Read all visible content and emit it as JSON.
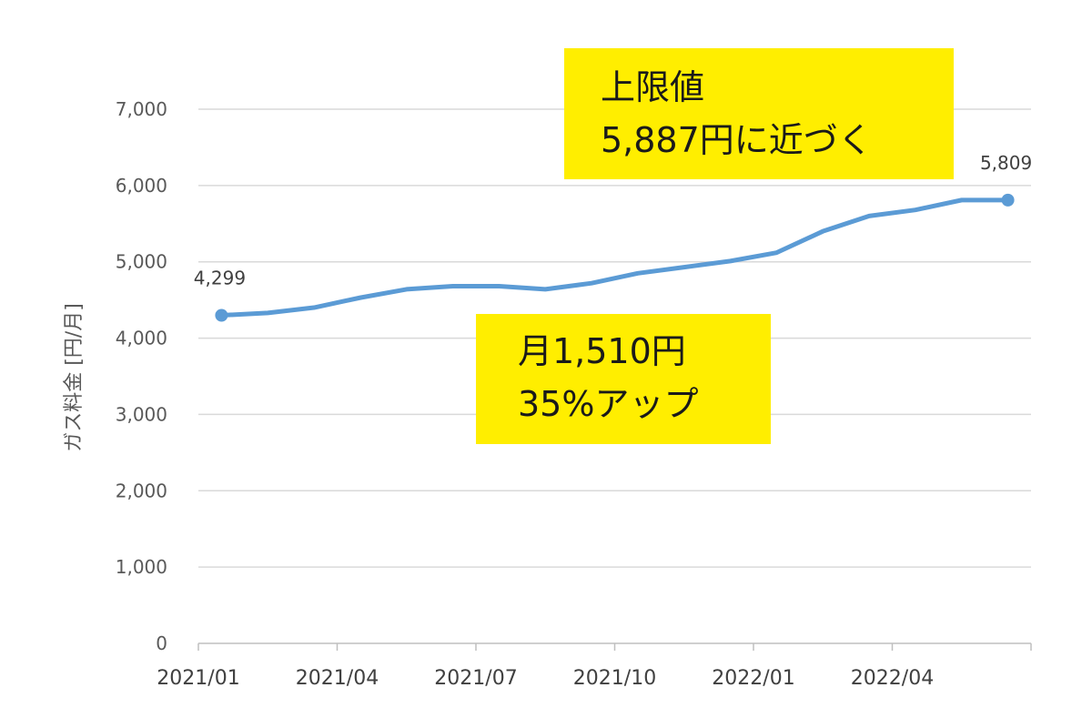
{
  "chart_data": {
    "type": "line",
    "ylabel": "ガス料金 [円/月]",
    "xlabel": "",
    "ylim": [
      0,
      7000
    ],
    "y_ticks": [
      0,
      1000,
      2000,
      3000,
      4000,
      5000,
      6000,
      7000
    ],
    "y_tick_labels": [
      "0",
      "1,000",
      "2,000",
      "3,000",
      "4,000",
      "5,000",
      "6,000",
      "7,000"
    ],
    "x_tick_labels": [
      "2021/01",
      "2021/04",
      "2021/07",
      "2021/10",
      "2022/01",
      "2022/04"
    ],
    "grid": true,
    "line_color": "#5b9bd5",
    "series": [
      {
        "x": [
          "2021/01",
          "2021/02",
          "2021/03",
          "2021/04",
          "2021/05",
          "2021/06",
          "2021/07",
          "2021/08",
          "2021/09",
          "2021/10",
          "2021/11",
          "2021/12",
          "2022/01",
          "2022/02",
          "2022/03",
          "2022/04",
          "2022/05",
          "2022/06"
        ],
        "values": [
          4299,
          4330,
          4400,
          4530,
          4640,
          4680,
          4680,
          4640,
          4720,
          4850,
          4930,
          5010,
          5120,
          5400,
          5600,
          5680,
          5809,
          5809
        ]
      }
    ],
    "data_labels": [
      {
        "index": 0,
        "text": "4,299"
      },
      {
        "index": 17,
        "text": "5,809"
      }
    ]
  },
  "annotations": {
    "top": {
      "line1": "上限値",
      "line2": "5,887円に近づく"
    },
    "middle": {
      "line1": "月1,510円",
      "line2": "35%アップ"
    },
    "highlight_color": "#ffee00"
  }
}
